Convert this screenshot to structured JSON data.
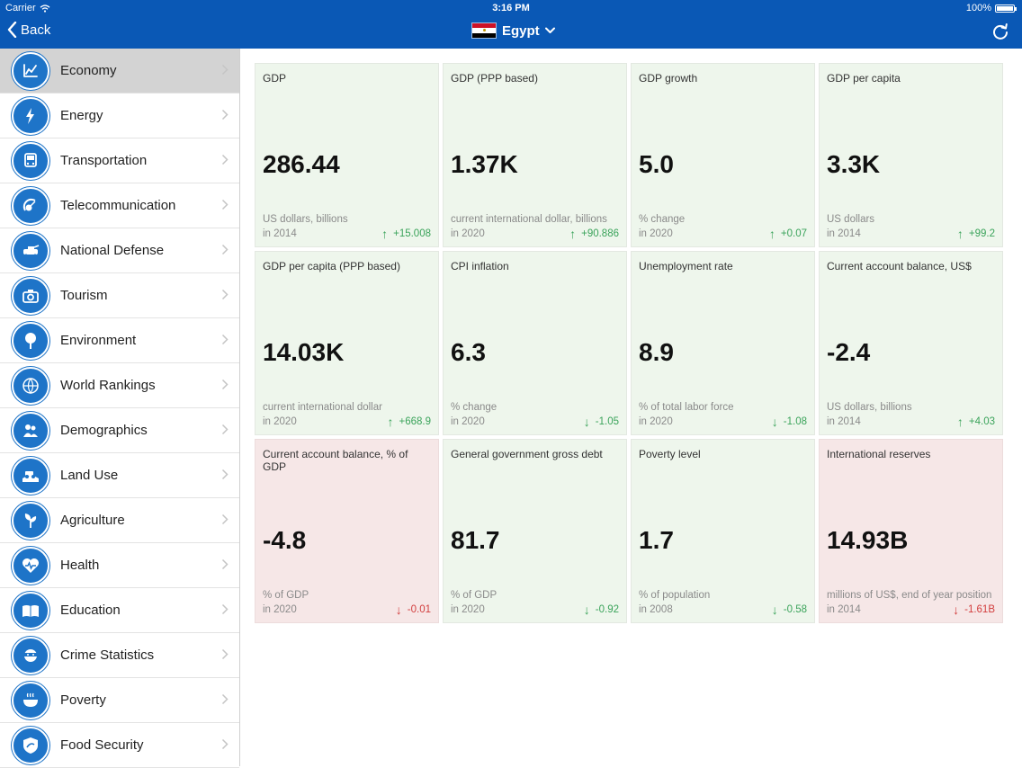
{
  "status": {
    "carrier": "Carrier",
    "time": "3:16 PM",
    "battery": "100%"
  },
  "nav": {
    "back_label": "Back",
    "country": "Egypt"
  },
  "sidebar": {
    "items": [
      {
        "label": "Economy",
        "icon": "economy-icon"
      },
      {
        "label": "Energy",
        "icon": "energy-icon"
      },
      {
        "label": "Transportation",
        "icon": "transportation-icon"
      },
      {
        "label": "Telecommunication",
        "icon": "telecommunication-icon"
      },
      {
        "label": "National Defense",
        "icon": "national-defense-icon"
      },
      {
        "label": "Tourism",
        "icon": "tourism-icon"
      },
      {
        "label": "Environment",
        "icon": "environment-icon"
      },
      {
        "label": "World Rankings",
        "icon": "world-rankings-icon"
      },
      {
        "label": "Demographics",
        "icon": "demographics-icon"
      },
      {
        "label": "Land Use",
        "icon": "land-use-icon"
      },
      {
        "label": "Agriculture",
        "icon": "agriculture-icon"
      },
      {
        "label": "Health",
        "icon": "health-icon"
      },
      {
        "label": "Education",
        "icon": "education-icon"
      },
      {
        "label": "Crime Statistics",
        "icon": "crime-statistics-icon"
      },
      {
        "label": "Poverty",
        "icon": "poverty-icon"
      },
      {
        "label": "Food Security",
        "icon": "food-security-icon"
      }
    ],
    "selected_index": 0
  },
  "colors": {
    "nav_blue": "#0a58b5",
    "icon_blue": "#1e74c8",
    "card_green": "#eef6ec",
    "card_red": "#f6e7e7",
    "up_green": "#3aa35a",
    "down_red": "#d23d3d"
  },
  "cards": [
    {
      "title": "GDP",
      "value": "286.44",
      "unit": "US dollars, billions",
      "year": "in 2014",
      "change": "+15.008",
      "direction": "up",
      "tone": "pos"
    },
    {
      "title": "GDP (PPP based)",
      "value": "1.37K",
      "unit": "current international dollar, billions",
      "year": "in 2020",
      "change": "+90.886",
      "direction": "up",
      "tone": "pos"
    },
    {
      "title": "GDP growth",
      "value": "5.0",
      "unit": "% change",
      "year": "in 2020",
      "change": "+0.07",
      "direction": "up",
      "tone": "pos"
    },
    {
      "title": "GDP per capita",
      "value": "3.3K",
      "unit": "US dollars",
      "year": "in 2014",
      "change": "+99.2",
      "direction": "up",
      "tone": "pos"
    },
    {
      "title": "GDP per capita (PPP based)",
      "value": "14.03K",
      "unit": "current international dollar",
      "year": "in 2020",
      "change": "+668.9",
      "direction": "up",
      "tone": "pos"
    },
    {
      "title": "CPI inflation",
      "value": "6.3",
      "unit": "% change",
      "year": "in 2020",
      "change": "-1.05",
      "direction": "down",
      "tone": "pos"
    },
    {
      "title": "Unemployment rate",
      "value": "8.9",
      "unit": "% of total labor force",
      "year": "in 2020",
      "change": "-1.08",
      "direction": "down",
      "tone": "pos"
    },
    {
      "title": "Current account balance, US$",
      "value": "-2.4",
      "unit": "US dollars, billions",
      "year": "in 2014",
      "change": "+4.03",
      "direction": "up",
      "tone": "pos"
    },
    {
      "title": "Current account balance, % of GDP",
      "value": "-4.8",
      "unit": "% of GDP",
      "year": "in 2020",
      "change": "-0.01",
      "direction": "down",
      "tone": "neg"
    },
    {
      "title": "General government gross debt",
      "value": "81.7",
      "unit": "% of GDP",
      "year": "in 2020",
      "change": "-0.92",
      "direction": "down",
      "tone": "pos"
    },
    {
      "title": "Poverty level",
      "value": "1.7",
      "unit": "% of population",
      "year": "in 2008",
      "change": "-0.58",
      "direction": "down",
      "tone": "pos"
    },
    {
      "title": "International reserves",
      "value": "14.93B",
      "unit": "millions of US$, end of year position",
      "year": "in 2014",
      "change": "-1.61B",
      "direction": "down",
      "tone": "neg"
    }
  ]
}
